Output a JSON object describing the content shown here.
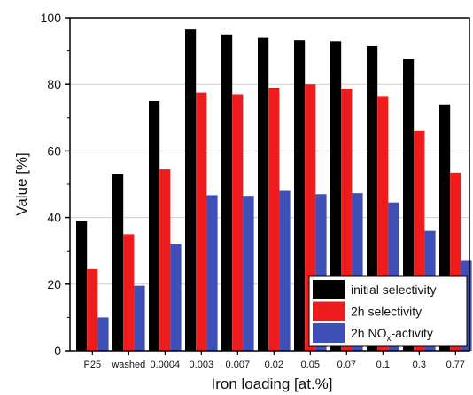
{
  "chart_data": {
    "type": "bar",
    "title": "",
    "xlabel": "Iron loading [at.%]",
    "ylabel": "Value [%]",
    "ylim": [
      0,
      100
    ],
    "yticks": [
      "0",
      "20",
      "40",
      "60",
      "80",
      "100"
    ],
    "grid": true,
    "legend_position": "bottom-right",
    "categories": [
      "P25",
      "washed",
      "0.0004",
      "0.003",
      "0.007",
      "0.02",
      "0.05",
      "0.07",
      "0.1",
      "0.3",
      "0.77"
    ],
    "series": [
      {
        "name": "initial selectivity",
        "color": "#000000",
        "values": [
          39,
          53,
          75,
          96.5,
          95,
          94,
          93.3,
          93,
          91.5,
          87.5,
          74
        ]
      },
      {
        "name": "2h selectivity",
        "color": "#ee1c1c",
        "values": [
          24.5,
          35,
          54.5,
          77.5,
          77,
          79,
          80,
          78.7,
          76.5,
          66,
          53.5
        ]
      },
      {
        "name": "2h NOx-activity",
        "name_parts": {
          "base": "2h NO",
          "sub": "x",
          "tail": "-activity"
        },
        "color": "#3f4fb8",
        "values": [
          10,
          19.5,
          32,
          46.7,
          46.5,
          48,
          47,
          47.3,
          44.5,
          36,
          27
        ]
      }
    ]
  }
}
